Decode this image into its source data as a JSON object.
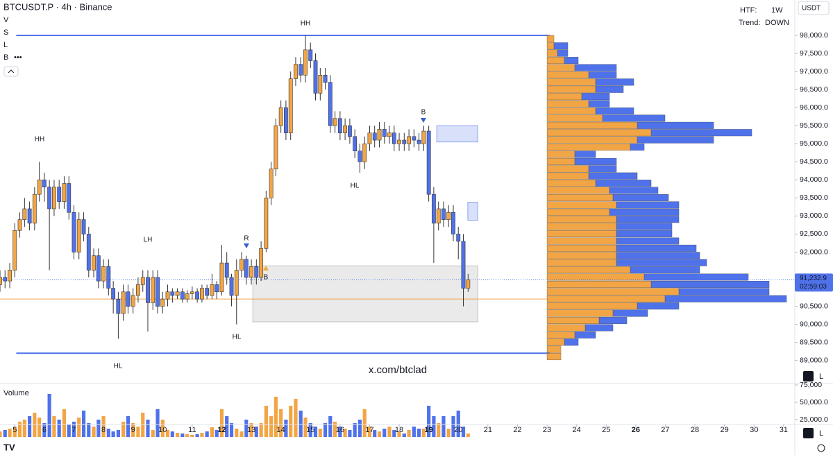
{
  "chart_data": {
    "type": "candlestick",
    "title": "BTCUSDT.P · 4h · Binance",
    "menu": [
      "V",
      "S",
      "L",
      "B"
    ],
    "menu_more": "•••",
    "currency": "USDT",
    "htf_label": "HTF:",
    "htf_value": "1W",
    "trend_label": "Trend:",
    "trend_value": "DOWN",
    "watermark": "x.com/btclad",
    "pane_buttons": [
      "A",
      "L"
    ],
    "colors": {
      "up": "#f2a545",
      "down": "#4f72ea",
      "range": "#4f72ea",
      "profile_inside": "#f2a545",
      "profile_outside": "#4f72ea"
    },
    "xlim": [
      4.5,
      31.38
    ],
    "xticks": [
      5,
      6,
      7,
      8,
      9,
      10,
      11,
      12,
      13,
      14,
      15,
      16,
      17,
      18,
      19,
      20,
      21,
      22,
      23,
      24,
      25,
      26,
      27,
      28,
      29,
      30,
      31
    ],
    "weekly_ticks": [
      12,
      19,
      26
    ],
    "ylim": [
      88380,
      98980
    ],
    "yticks": [
      {
        "value": 89000,
        "label": "89,000.0"
      },
      {
        "value": 89500,
        "label": "89,500.0"
      },
      {
        "value": 90000,
        "label": "90,000.0"
      },
      {
        "value": 90500,
        "label": "90,500.0"
      },
      {
        "value": 91000,
        "label": "91,000.0"
      },
      {
        "value": 91500,
        "label": "91,500.0"
      },
      {
        "value": 92000,
        "label": "92,000.0"
      },
      {
        "value": 92500,
        "label": "92,500.0"
      },
      {
        "value": 93000,
        "label": "93,000.0"
      },
      {
        "value": 93500,
        "label": "93,500.0"
      },
      {
        "value": 94000,
        "label": "94,000.0"
      },
      {
        "value": 94500,
        "label": "94,500.0"
      },
      {
        "value": 95000,
        "label": "95,000.0"
      },
      {
        "value": 95500,
        "label": "95,500.0"
      },
      {
        "value": 96000,
        "label": "96,000.0"
      },
      {
        "value": 96500,
        "label": "96,500.0"
      },
      {
        "value": 97000,
        "label": "97,000.0"
      },
      {
        "value": 97500,
        "label": "97,500.0"
      },
      {
        "value": 98000,
        "label": "98,000.0"
      }
    ],
    "x": [
      4.5,
      4.67,
      4.83,
      5,
      5.17,
      5.33,
      5.5,
      5.67,
      5.83,
      6,
      6.17,
      6.33,
      6.5,
      6.67,
      6.83,
      7,
      7.17,
      7.33,
      7.5,
      7.67,
      7.83,
      8,
      8.17,
      8.33,
      8.5,
      8.67,
      8.83,
      9,
      9.17,
      9.33,
      9.5,
      9.67,
      9.83,
      10,
      10.17,
      10.33,
      10.5,
      10.67,
      10.83,
      11,
      11.17,
      11.33,
      11.5,
      11.67,
      11.83,
      12,
      12.17,
      12.33,
      12.5,
      12.67,
      12.83,
      13,
      13.17,
      13.33,
      13.5,
      13.67,
      13.83,
      14,
      14.17,
      14.33,
      14.5,
      14.67,
      14.83,
      15,
      15.17,
      15.33,
      15.5,
      15.67,
      15.83,
      16,
      16.17,
      16.33,
      16.5,
      16.67,
      16.83,
      17,
      17.17,
      17.33,
      17.5,
      17.67,
      17.83,
      18,
      18.17,
      18.33,
      18.5,
      18.67,
      18.83,
      19,
      19.17,
      19.33,
      19.5,
      19.67,
      19.83,
      20,
      20.17,
      20.33
    ],
    "open": [
      91100,
      91300,
      91200,
      91500,
      92600,
      92900,
      93200,
      92800,
      93600,
      94000,
      93800,
      93200,
      93800,
      93400,
      93900,
      93100,
      92000,
      92900,
      92500,
      91500,
      91900,
      91200,
      91600,
      91000,
      90700,
      90300,
      90900,
      90500,
      90800,
      91100,
      91300,
      90600,
      91300,
      90500,
      90700,
      90900,
      90800,
      90900,
      90700,
      90850,
      90900,
      90700,
      91000,
      90800,
      91100,
      90900,
      91700,
      91300,
      90800,
      91500,
      91800,
      91300,
      91600,
      91300,
      92100,
      93500,
      94300,
      95500,
      96000,
      95300,
      96800,
      97200,
      96900,
      97600,
      97300,
      96400,
      96900,
      96700,
      95500,
      95700,
      95300,
      95500,
      95200,
      94800,
      94500,
      95000,
      95300,
      95100,
      95400,
      95200,
      95300,
      95000,
      95100,
      95000,
      95200,
      95100,
      95000,
      95350,
      93600,
      92800,
      93200,
      92900,
      93100,
      92500,
      92300,
      91000
    ],
    "high": [
      91500,
      91500,
      91700,
      92800,
      93100,
      93500,
      93400,
      93800,
      94500,
      94200,
      94000,
      94000,
      94000,
      94100,
      94100,
      93300,
      93100,
      93100,
      92700,
      92100,
      92100,
      91800,
      91800,
      91200,
      90900,
      91100,
      91100,
      91000,
      91300,
      91500,
      91500,
      91500,
      91500,
      90900,
      91100,
      91000,
      91000,
      91000,
      90950,
      91050,
      91000,
      91100,
      91100,
      91400,
      91200,
      92200,
      92000,
      91400,
      91800,
      92000,
      91900,
      91800,
      91800,
      92300,
      93700,
      94500,
      95700,
      96200,
      96200,
      97000,
      97400,
      97400,
      98000,
      97800,
      97500,
      97100,
      97100,
      96900,
      95900,
      95900,
      95700,
      95700,
      95400,
      95000,
      95200,
      95500,
      95500,
      95600,
      95600,
      95500,
      95500,
      95300,
      95300,
      95400,
      95400,
      95300,
      95500,
      95500,
      93800,
      93400,
      93400,
      93300,
      93300,
      92700,
      92500,
      91400
    ],
    "low": [
      90900,
      91000,
      91000,
      91300,
      92400,
      92700,
      92600,
      92600,
      93400,
      93400,
      91500,
      93000,
      93200,
      93200,
      92900,
      91800,
      91800,
      92300,
      91300,
      91300,
      91000,
      91000,
      90800,
      90300,
      89600,
      90100,
      90300,
      90300,
      90600,
      90900,
      89800,
      90400,
      90300,
      90300,
      90500,
      90600,
      90700,
      90600,
      90600,
      90700,
      90600,
      90600,
      90700,
      90700,
      90700,
      90800,
      91100,
      90500,
      90000,
      91300,
      91100,
      91100,
      91100,
      91200,
      92000,
      93300,
      94100,
      95300,
      95100,
      95100,
      96600,
      96700,
      96700,
      97100,
      96200,
      96200,
      96500,
      95300,
      95300,
      95100,
      95100,
      95000,
      94600,
      94200,
      94300,
      94800,
      94900,
      94900,
      95000,
      95000,
      94800,
      94800,
      94800,
      94800,
      94900,
      94800,
      94800,
      93400,
      91700,
      92600,
      92700,
      92700,
      92300,
      91800,
      90500,
      90900
    ],
    "close": [
      91300,
      91200,
      91500,
      92600,
      92900,
      93200,
      92800,
      93600,
      94000,
      93800,
      93200,
      93800,
      93400,
      93900,
      93100,
      92000,
      92900,
      92500,
      91500,
      91900,
      91200,
      91600,
      91000,
      90700,
      90300,
      90900,
      90500,
      90800,
      91100,
      91300,
      90600,
      91300,
      90500,
      90700,
      90900,
      90800,
      90900,
      90700,
      90850,
      90900,
      90700,
      91000,
      90800,
      91100,
      90900,
      91700,
      91300,
      90800,
      91500,
      91800,
      91300,
      91600,
      91300,
      92100,
      93500,
      94300,
      95500,
      96000,
      95300,
      96800,
      97200,
      96900,
      97600,
      97300,
      96400,
      96900,
      96700,
      95500,
      95700,
      95300,
      95500,
      95200,
      94800,
      94500,
      95000,
      95300,
      95100,
      95400,
      95200,
      95300,
      95000,
      95100,
      95000,
      95200,
      95100,
      95000,
      95350,
      93600,
      92800,
      93200,
      92900,
      93100,
      92500,
      92300,
      91000,
      91232.9
    ],
    "last_price": {
      "value": 91232.9,
      "label": "91,232.9",
      "countdown": "02:59:03"
    },
    "volume": {
      "title": "Volume",
      "ylim": [
        0,
        77000
      ],
      "yticks": [
        {
          "value": 25000,
          "label": "25,000.0"
        },
        {
          "value": 50000,
          "label": "50,000.0"
        },
        {
          "value": 75000,
          "label": "75,000"
        }
      ],
      "values": [
        8000,
        10000,
        12000,
        14000,
        22000,
        25000,
        30000,
        35000,
        28000,
        20000,
        62000,
        30000,
        25000,
        40000,
        18000,
        22000,
        28000,
        38000,
        20000,
        15000,
        25000,
        30000,
        12000,
        8000,
        10000,
        22000,
        30000,
        20000,
        15000,
        35000,
        25000,
        10000,
        40000,
        25000,
        10000,
        8000,
        6000,
        5000,
        4000,
        3000,
        4000,
        6000,
        8000,
        14000,
        10000,
        40000,
        30000,
        20000,
        12000,
        8000,
        25000,
        20000,
        15000,
        20000,
        45000,
        30000,
        58000,
        40000,
        25000,
        45000,
        55000,
        38000,
        28000,
        20000,
        15000,
        12000,
        20000,
        30000,
        22000,
        15000,
        12000,
        10000,
        20000,
        25000,
        40000,
        15000,
        10000,
        8000,
        12000,
        15000,
        10000,
        8000,
        5000,
        10000,
        15000,
        12000,
        12000,
        45000,
        30000,
        20000,
        30000,
        12000,
        30000,
        38000,
        15000,
        5000
      ]
    },
    "profile": {
      "x_start": 23,
      "levels": [
        89000,
        89200,
        89400,
        89600,
        89800,
        90000,
        90200,
        90400,
        90600,
        90800,
        91000,
        91200,
        91400,
        91600,
        91800,
        92000,
        92200,
        92400,
        92600,
        92800,
        93000,
        93200,
        93400,
        93600,
        93800,
        94000,
        94200,
        94400,
        94600,
        94800,
        95000,
        95200,
        95400,
        95600,
        95800,
        96000,
        96200,
        96400,
        96600,
        96800,
        97000,
        97200,
        97400,
        97600,
        97800
      ],
      "inside": [
        20,
        20,
        25,
        40,
        55,
        75,
        95,
        130,
        170,
        190,
        150,
        140,
        120,
        100,
        100,
        100,
        100,
        100,
        100,
        100,
        90,
        100,
        95,
        90,
        70,
        60,
        60,
        40,
        40,
        120,
        130,
        150,
        130,
        80,
        70,
        60,
        50,
        70,
        70,
        60,
        40,
        25,
        15,
        10,
        10
      ],
      "outside": [
        0,
        0,
        20,
        30,
        40,
        40,
        50,
        60,
        175,
        130,
        170,
        150,
        100,
        130,
        120,
        115,
        90,
        80,
        80,
        90,
        100,
        90,
        80,
        70,
        80,
        70,
        40,
        60,
        30,
        20,
        110,
        145,
        110,
        90,
        55,
        30,
        40,
        40,
        55,
        40,
        60,
        20,
        15,
        20,
        0
      ]
    },
    "range_lines": [
      {
        "price": 98000,
        "x0": 5.05,
        "x1": 23.1
      },
      {
        "price": 89200,
        "x0": 5.05,
        "x1": 23.1
      }
    ],
    "level_line": {
      "price": 90700,
      "x0": 4.5,
      "x1": 23.0,
      "color": "#f2a545"
    },
    "zones": [
      {
        "x0": 13.05,
        "x1": 20.66,
        "low": 90070,
        "high": 91620,
        "color": "#9e9e9e"
      },
      {
        "x0": 19.27,
        "x1": 20.66,
        "low": 95050,
        "high": 95500,
        "color": "#4f72ea"
      },
      {
        "x0": 20.32,
        "x1": 20.66,
        "low": 92880,
        "high": 93380,
        "color": "#4f72ea"
      }
    ],
    "annotations": [
      {
        "text": "HH",
        "color": "#787b86"
      },
      {
        "text": "HH",
        "color": "#787b86"
      },
      {
        "text": "LH",
        "color": "#e0433f"
      },
      {
        "text": "HL",
        "color": "#3a5fd0"
      },
      {
        "text": "HL",
        "color": "#3a5fd0"
      },
      {
        "text": "HL",
        "color": "#3a5fd0"
      },
      {
        "text": "R",
        "color": "#3a5fd0"
      },
      {
        "text": "B",
        "color": "#3a5fd0"
      },
      {
        "text": "B",
        "color": "#f2a545"
      }
    ]
  }
}
